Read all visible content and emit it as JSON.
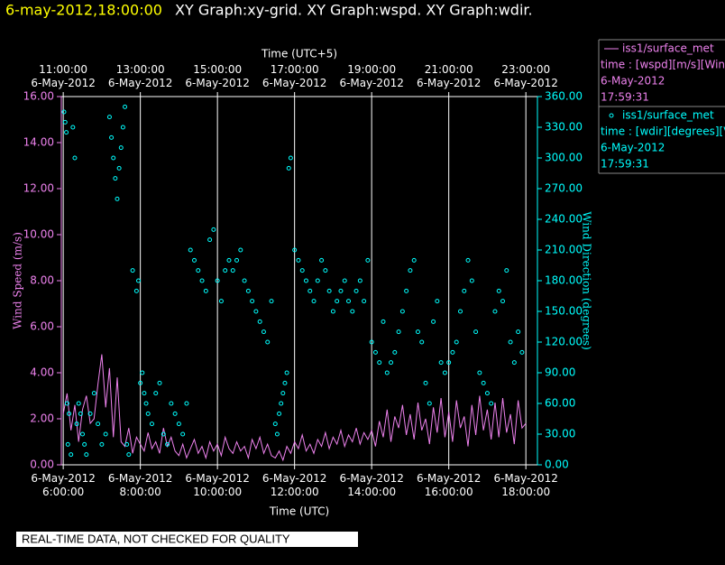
{
  "chart_data": {
    "type": "xy-graph",
    "title_time": "6-may-2012,18:00:00",
    "title": "XY Graph:xy-grid.  XY Graph:wspd.  XY Graph:wdir.",
    "x_label": "Time (UTC)",
    "x2_label": "Time (UTC+5)",
    "y_label": "Wind Speed (m/s)",
    "y2_label": "Wind Direction (degrees)",
    "note": "REAL-TIME DATA, NOT CHECKED FOR QUALITY",
    "xlim": [
      5.95,
      18.3
    ],
    "x2lim": [
      10.95,
      23.3
    ],
    "ylim": [
      0,
      16
    ],
    "y2lim": [
      0,
      360
    ],
    "grid": true,
    "xticks": [
      {
        "value": 6,
        "label": "6-May-2012\n6:00:00"
      },
      {
        "value": 8,
        "label": "6-May-2012\n8:00:00"
      },
      {
        "value": 10,
        "label": "6-May-2012\n10:00:00"
      },
      {
        "value": 12,
        "label": "6-May-2012\n12:00:00"
      },
      {
        "value": 14,
        "label": "6-May-2012\n14:00:00"
      },
      {
        "value": 16,
        "label": "6-May-2012\n16:00:00"
      },
      {
        "value": 18,
        "label": "6-May-2012\n18:00:00"
      }
    ],
    "x2ticks": [
      {
        "value": 11,
        "label": "11:00:00\n6-May-2012"
      },
      {
        "value": 13,
        "label": "13:00:00\n6-May-2012"
      },
      {
        "value": 15,
        "label": "15:00:00\n6-May-2012"
      },
      {
        "value": 17,
        "label": "17:00:00\n6-May-2012"
      },
      {
        "value": 19,
        "label": "19:00:00\n6-May-2012"
      },
      {
        "value": 21,
        "label": "21:00:00\n6-May-2012"
      },
      {
        "value": 23,
        "label": "23:00:00\n6-May-2012"
      }
    ],
    "yticks": [
      {
        "value": 0,
        "label": "0.00"
      },
      {
        "value": 2,
        "label": "2.00"
      },
      {
        "value": 4,
        "label": "4.00"
      },
      {
        "value": 6,
        "label": "6.00"
      },
      {
        "value": 8,
        "label": "8.00"
      },
      {
        "value": 10,
        "label": "10.00"
      },
      {
        "value": 12,
        "label": "12.00"
      },
      {
        "value": 14,
        "label": "14.00"
      },
      {
        "value": 16,
        "label": "16.00"
      }
    ],
    "y2ticks": [
      {
        "value": 0,
        "label": "0.00"
      },
      {
        "value": 30,
        "label": "30.00"
      },
      {
        "value": 60,
        "label": "60.00"
      },
      {
        "value": 90,
        "label": "90.00"
      },
      {
        "value": 120,
        "label": "120.00"
      },
      {
        "value": 150,
        "label": "150.00"
      },
      {
        "value": 180,
        "label": "180.00"
      },
      {
        "value": 210,
        "label": "210.00"
      },
      {
        "value": 240,
        "label": "240.00"
      },
      {
        "value": 270,
        "label": "270.00"
      },
      {
        "value": 300,
        "label": "300.00"
      },
      {
        "value": 330,
        "label": "330.00"
      },
      {
        "value": 360,
        "label": "360.00"
      }
    ],
    "series": [
      {
        "name": "iss1/surface_met",
        "field": "time : [wspd][m/s][Wind",
        "date": "6-May-2012",
        "time": "17:59:31",
        "color": "#ee82ee",
        "style": "line",
        "x": [
          6.0,
          6.1,
          6.2,
          6.3,
          6.4,
          6.5,
          6.6,
          6.7,
          6.8,
          6.9,
          7.0,
          7.1,
          7.2,
          7.3,
          7.4,
          7.5,
          7.6,
          7.7,
          7.8,
          7.9,
          8.0,
          8.1,
          8.2,
          8.3,
          8.4,
          8.5,
          8.6,
          8.7,
          8.8,
          8.9,
          9.0,
          9.1,
          9.2,
          9.3,
          9.4,
          9.5,
          9.6,
          9.7,
          9.8,
          9.9,
          10.0,
          10.1,
          10.2,
          10.3,
          10.4,
          10.5,
          10.6,
          10.7,
          10.8,
          10.9,
          11.0,
          11.1,
          11.2,
          11.3,
          11.4,
          11.5,
          11.6,
          11.7,
          11.8,
          11.9,
          12.0,
          12.1,
          12.2,
          12.3,
          12.4,
          12.5,
          12.6,
          12.7,
          12.8,
          12.9,
          13.0,
          13.1,
          13.2,
          13.3,
          13.4,
          13.5,
          13.6,
          13.7,
          13.8,
          13.9,
          14.0,
          14.1,
          14.2,
          14.3,
          14.4,
          14.5,
          14.6,
          14.7,
          14.8,
          14.9,
          15.0,
          15.1,
          15.2,
          15.3,
          15.4,
          15.5,
          15.6,
          15.7,
          15.8,
          15.9,
          16.0,
          16.1,
          16.2,
          16.3,
          16.4,
          16.5,
          16.6,
          16.7,
          16.8,
          16.9,
          17.0,
          17.1,
          17.2,
          17.3,
          17.4,
          17.5,
          17.6,
          17.7,
          17.8,
          17.9,
          18.0
        ],
        "values": [
          2.2,
          3.1,
          1.5,
          2.6,
          1.0,
          2.4,
          3.0,
          1.8,
          2.0,
          3.5,
          4.8,
          2.5,
          4.2,
          1.2,
          3.8,
          1.0,
          0.8,
          1.6,
          0.5,
          1.2,
          0.9,
          0.6,
          1.4,
          0.7,
          1.0,
          0.5,
          1.6,
          0.8,
          1.2,
          0.6,
          0.4,
          0.9,
          0.3,
          0.7,
          1.1,
          0.5,
          0.8,
          0.3,
          1.0,
          0.6,
          0.9,
          0.4,
          1.2,
          0.7,
          0.5,
          1.0,
          0.6,
          0.8,
          0.3,
          1.1,
          0.7,
          1.2,
          0.5,
          0.9,
          0.4,
          0.3,
          0.6,
          0.2,
          0.8,
          0.5,
          1.0,
          0.7,
          1.3,
          0.6,
          0.9,
          0.5,
          1.1,
          0.8,
          1.4,
          0.7,
          1.2,
          0.9,
          1.5,
          0.8,
          1.3,
          1.0,
          1.6,
          0.9,
          1.4,
          1.1,
          1.5,
          0.8,
          1.9,
          1.2,
          2.4,
          1.0,
          2.1,
          1.6,
          2.6,
          1.3,
          2.2,
          1.1,
          2.7,
          1.5,
          2.0,
          0.9,
          2.5,
          1.4,
          2.9,
          1.2,
          2.3,
          1.0,
          2.8,
          1.6,
          2.1,
          0.8,
          2.6,
          1.3,
          3.0,
          1.5,
          2.4,
          1.1,
          2.7,
          1.2,
          2.9,
          1.4,
          2.2,
          0.9,
          2.8,
          1.6,
          1.8
        ]
      },
      {
        "name": "iss1/surface_met",
        "field": "time : [wdir][degrees][V",
        "date": "6-May-2012",
        "time": "17:59:31",
        "color": "#00ffff",
        "style": "scatter",
        "axis": "y2",
        "x": [
          6.02,
          6.05,
          6.08,
          6.1,
          6.12,
          6.15,
          6.2,
          6.25,
          6.3,
          6.35,
          6.4,
          6.45,
          6.5,
          6.55,
          6.6,
          6.7,
          6.8,
          6.9,
          7.0,
          7.1,
          7.2,
          7.25,
          7.3,
          7.35,
          7.4,
          7.45,
          7.5,
          7.55,
          7.6,
          7.65,
          7.7,
          7.8,
          7.9,
          7.95,
          8.0,
          8.05,
          8.1,
          8.15,
          8.2,
          8.3,
          8.4,
          8.5,
          8.6,
          8.7,
          8.8,
          8.9,
          9.0,
          9.1,
          9.2,
          9.3,
          9.4,
          9.5,
          9.6,
          9.7,
          9.8,
          9.9,
          10.0,
          10.1,
          10.2,
          10.3,
          10.4,
          10.5,
          10.6,
          10.7,
          10.8,
          10.9,
          11.0,
          11.1,
          11.2,
          11.3,
          11.4,
          11.5,
          11.55,
          11.6,
          11.65,
          11.7,
          11.75,
          11.8,
          11.85,
          11.9,
          12.0,
          12.1,
          12.2,
          12.3,
          12.4,
          12.5,
          12.6,
          12.7,
          12.8,
          12.9,
          13.0,
          13.1,
          13.2,
          13.3,
          13.4,
          13.5,
          13.6,
          13.7,
          13.8,
          13.9,
          14.0,
          14.1,
          14.2,
          14.3,
          14.4,
          14.5,
          14.6,
          14.7,
          14.8,
          14.9,
          15.0,
          15.1,
          15.2,
          15.3,
          15.4,
          15.5,
          15.6,
          15.7,
          15.8,
          15.9,
          16.0,
          16.1,
          16.2,
          16.3,
          16.4,
          16.5,
          16.6,
          16.7,
          16.8,
          16.9,
          17.0,
          17.1,
          17.2,
          17.3,
          17.4,
          17.5,
          17.6,
          17.7,
          17.8,
          17.9
        ],
        "values": [
          345,
          335,
          325,
          60,
          20,
          50,
          10,
          330,
          300,
          40,
          60,
          50,
          30,
          20,
          10,
          50,
          70,
          40,
          20,
          30,
          340,
          320,
          300,
          280,
          260,
          290,
          310,
          330,
          350,
          20,
          10,
          190,
          170,
          180,
          80,
          90,
          70,
          60,
          50,
          40,
          70,
          80,
          30,
          20,
          60,
          50,
          40,
          30,
          60,
          210,
          200,
          190,
          180,
          170,
          220,
          230,
          180,
          160,
          190,
          200,
          190,
          200,
          210,
          180,
          170,
          160,
          150,
          140,
          130,
          120,
          160,
          40,
          30,
          50,
          60,
          70,
          80,
          90,
          290,
          300,
          210,
          200,
          190,
          180,
          170,
          160,
          180,
          200,
          190,
          170,
          150,
          160,
          170,
          180,
          160,
          150,
          170,
          180,
          160,
          200,
          120,
          110,
          100,
          140,
          90,
          100,
          110,
          130,
          150,
          170,
          190,
          200,
          130,
          120,
          80,
          60,
          140,
          160,
          100,
          90,
          100,
          110,
          120,
          150,
          170,
          200,
          180,
          130,
          90,
          80,
          70,
          60,
          150,
          170,
          160,
          190,
          120,
          100,
          130,
          110
        ]
      }
    ]
  }
}
